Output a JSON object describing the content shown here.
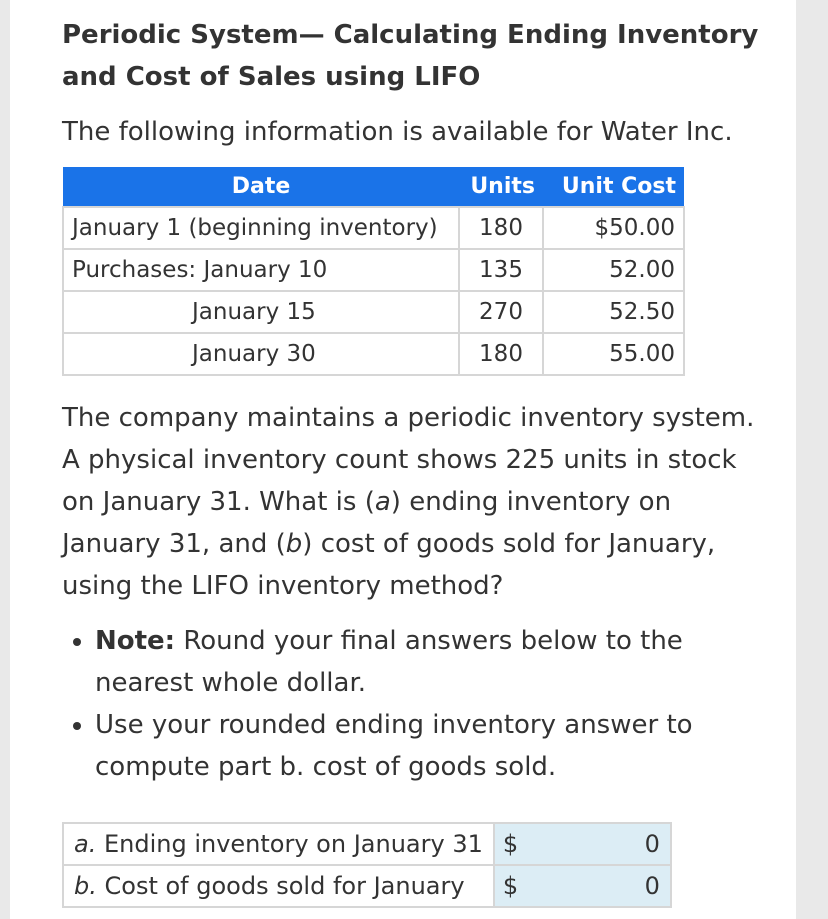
{
  "title": "Periodic System— Calculating Ending Inventory and Cost of Sales using LIFO",
  "intro": "The following information is available for Water Inc.",
  "table": {
    "headers": [
      "Date",
      "Units",
      "Unit Cost"
    ],
    "rows": [
      {
        "date": "January 1 (beginning inventory)",
        "units": "180",
        "cost": "$50.00"
      },
      {
        "date": "Purchases: January 10",
        "units": "135",
        "cost": "52.00"
      },
      {
        "date": "January 15",
        "units": "270",
        "cost": "52.50"
      },
      {
        "date": "January 30",
        "units": "180",
        "cost": "55.00"
      }
    ]
  },
  "question": {
    "p1": "The company maintains a periodic inventory system. A physical inventory count shows 225 units in stock on January 31. What is (",
    "a": "a",
    "p2": ") ending inventory on January 31, and (",
    "b": "b",
    "p3": ") cost of goods sold for January, using the LIFO inventory method?"
  },
  "notes": {
    "note_label": "Note:",
    "note_text": " Round your final answers below to the nearest whole dollar.",
    "second": "Use your rounded ending inventory answer to compute part b. cost of goods sold."
  },
  "answers": [
    {
      "letter": "a.",
      "label": " Ending inventory on January 31",
      "currency": "$",
      "value": "0"
    },
    {
      "letter": "b.",
      "label": " Cost of goods sold for January",
      "currency": "$",
      "value": "0"
    }
  ]
}
